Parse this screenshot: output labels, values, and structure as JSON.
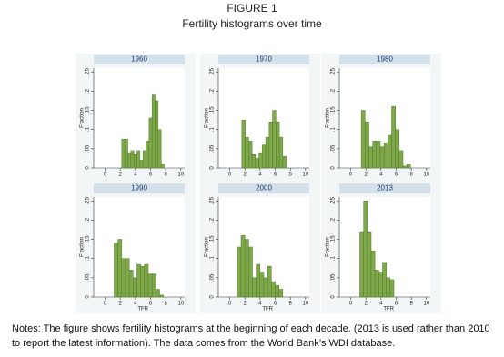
{
  "header": {
    "title": "FIGURE 1",
    "subtitle": "Fertility histograms over time"
  },
  "notes": "Notes: The figure shows fertility histograms at the beginning of each decade. (2013 is used rather than 2010 to report the latest information). The data comes from the World Bank’s WDI database.",
  "chart_data": [
    {
      "type": "histogram",
      "title": "1960",
      "ylabel": "Fraction",
      "color": "#7ea84a",
      "bins": [
        2.2,
        2.6,
        3.0,
        3.4,
        3.8,
        4.2,
        4.6,
        5.0,
        5.4,
        5.8,
        6.2,
        6.6,
        7.0,
        7.4,
        7.8
      ],
      "values": [
        0.075,
        0.075,
        0.04,
        0.045,
        0.035,
        0.045,
        0.02,
        0.045,
        0.07,
        0.13,
        0.19,
        0.175,
        0.1,
        0.01
      ],
      "xlim": [
        -1.5,
        10.5
      ],
      "ylim": [
        0,
        0.26
      ],
      "xticks": [
        0,
        2,
        4,
        6,
        8,
        10
      ],
      "yticks": [
        0,
        {
          "value": 0.05,
          "label": ".05"
        },
        {
          "value": 0.1,
          "label": ".1"
        },
        {
          "value": 0.15,
          "label": ".15"
        },
        {
          "value": 0.2,
          "label": ".2"
        },
        {
          "value": 0.25,
          "label": ".25"
        }
      ]
    },
    {
      "type": "histogram",
      "title": "1970",
      "ylabel": "Fraction",
      "color": "#7ea84a",
      "bins": [
        1.6,
        2.05,
        2.5,
        2.95,
        3.4,
        3.85,
        4.3,
        4.75,
        5.2,
        5.65,
        6.1,
        6.55,
        7.0,
        7.45
      ],
      "values": [
        0.125,
        0.08,
        0.07,
        0.035,
        0.025,
        0.04,
        0.06,
        0.08,
        0.12,
        0.15,
        0.12,
        0.08,
        0.03
      ],
      "xlim": [
        -1.5,
        10.5
      ],
      "ylim": [
        0,
        0.26
      ],
      "xticks": [
        0,
        2,
        4,
        6,
        8,
        10
      ],
      "yticks": [
        0,
        {
          "value": 0.05,
          "label": ".05"
        },
        {
          "value": 0.1,
          "label": ".1"
        },
        {
          "value": 0.15,
          "label": ".15"
        },
        {
          "value": 0.2,
          "label": ".2"
        },
        {
          "value": 0.25,
          "label": ".25"
        }
      ]
    },
    {
      "type": "histogram",
      "title": "1980",
      "ylabel": "Fraction",
      "color": "#7ea84a",
      "bins": [
        1.4,
        1.9,
        2.4,
        2.9,
        3.4,
        3.9,
        4.4,
        4.9,
        5.4,
        5.9,
        6.4,
        6.9,
        7.4,
        7.9
      ],
      "values": [
        0.15,
        0.12,
        0.055,
        0.07,
        0.07,
        0.055,
        0.065,
        0.085,
        0.16,
        0.1,
        0.045,
        0.005,
        0.01
      ],
      "xlim": [
        -1.5,
        10.5
      ],
      "ylim": [
        0,
        0.26
      ],
      "xticks": [
        0,
        2,
        4,
        6,
        8,
        10
      ],
      "yticks": [
        0,
        {
          "value": 0.05,
          "label": ".05"
        },
        {
          "value": 0.1,
          "label": ".1"
        },
        {
          "value": 0.15,
          "label": ".15"
        },
        {
          "value": 0.2,
          "label": ".2"
        },
        {
          "value": 0.25,
          "label": ".25"
        }
      ]
    },
    {
      "type": "histogram",
      "title": "1990",
      "xlabel": "TFR",
      "ylabel": "Fraction",
      "color": "#7ea84a",
      "bins": [
        1.2,
        1.7,
        2.2,
        2.7,
        3.2,
        3.7,
        4.2,
        4.7,
        5.2,
        5.7,
        6.2,
        6.7,
        7.2,
        7.7
      ],
      "values": [
        0.14,
        0.15,
        0.1,
        0.1,
        0.07,
        0.05,
        0.085,
        0.08,
        0.085,
        0.06,
        0.06,
        0.02,
        0.005
      ],
      "xlim": [
        -1.5,
        10.5
      ],
      "ylim": [
        0,
        0.26
      ],
      "xticks": [
        0,
        2,
        4,
        6,
        8,
        10
      ],
      "yticks": [
        0,
        {
          "value": 0.05,
          "label": ".05"
        },
        {
          "value": 0.1,
          "label": ".1"
        },
        {
          "value": 0.15,
          "label": ".15"
        },
        {
          "value": 0.2,
          "label": ".2"
        },
        {
          "value": 0.25,
          "label": ".25"
        }
      ]
    },
    {
      "type": "histogram",
      "title": "2000",
      "xlabel": "TFR",
      "ylabel": "Fraction",
      "color": "#7ea84a",
      "bins": [
        1.0,
        1.5,
        2.0,
        2.5,
        3.0,
        3.5,
        4.0,
        4.5,
        5.0,
        5.5,
        6.0,
        6.5,
        7.0
      ],
      "values": [
        0.13,
        0.16,
        0.15,
        0.13,
        0.05,
        0.085,
        0.065,
        0.05,
        0.08,
        0.04,
        0.03,
        0.02
      ],
      "xlim": [
        -1.5,
        10.5
      ],
      "ylim": [
        0,
        0.26
      ],
      "xticks": [
        0,
        2,
        4,
        6,
        8,
        10
      ],
      "yticks": [
        0,
        {
          "value": 0.05,
          "label": ".05"
        },
        {
          "value": 0.1,
          "label": ".1"
        },
        {
          "value": 0.15,
          "label": ".15"
        },
        {
          "value": 0.2,
          "label": ".2"
        },
        {
          "value": 0.25,
          "label": ".25"
        }
      ]
    },
    {
      "type": "histogram",
      "title": "2013",
      "xlabel": "TFR",
      "ylabel": "Fraction",
      "color": "#7ea84a",
      "bins": [
        1.2,
        1.7,
        2.2,
        2.7,
        3.2,
        3.7,
        4.2,
        4.7,
        5.2,
        5.7
      ],
      "values": [
        0.17,
        0.25,
        0.17,
        0.12,
        0.07,
        0.065,
        0.09,
        0.05,
        0.045
      ],
      "xlim": [
        -1.5,
        10.5
      ],
      "ylim": [
        0,
        0.26
      ],
      "xticks": [
        0,
        2,
        4,
        6,
        8,
        10
      ],
      "yticks": [
        0,
        {
          "value": 0.05,
          "label": ".05"
        },
        {
          "value": 0.1,
          "label": ".1"
        },
        {
          "value": 0.15,
          "label": ".15"
        },
        {
          "value": 0.2,
          "label": ".2"
        },
        {
          "value": 0.25,
          "label": ".25"
        }
      ]
    }
  ]
}
